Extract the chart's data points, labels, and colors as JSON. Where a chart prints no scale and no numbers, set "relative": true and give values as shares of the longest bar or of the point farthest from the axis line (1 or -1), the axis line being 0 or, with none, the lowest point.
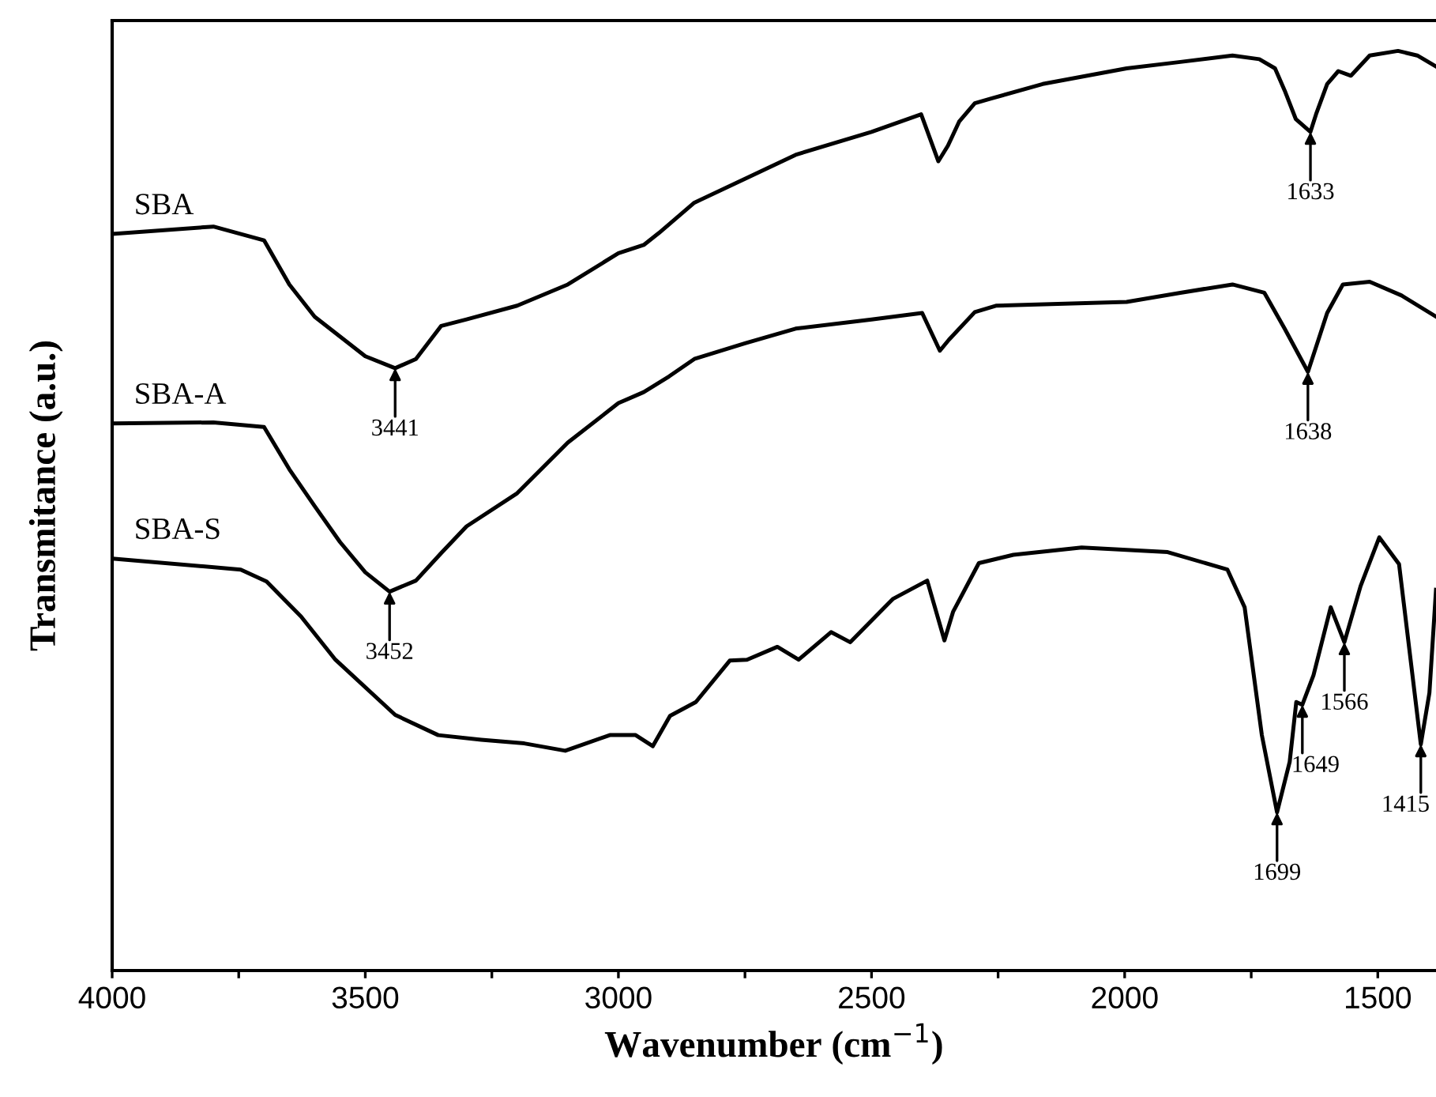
{
  "chart_data": {
    "type": "line",
    "relative": true,
    "xlabel": "Wavenumber (cm$^{−1}$)",
    "ylabel": "Transmitance (a.u.)",
    "xlim": [
      4000,
      1385
    ],
    "xticks": [
      4000,
      {
        "value": 3750,
        "label": null
      },
      3500,
      {
        "value": 3250,
        "label": null
      },
      3000,
      {
        "value": 2750,
        "label": null
      },
      2500,
      {
        "value": 2250,
        "label": null
      },
      2000,
      {
        "value": 1750,
        "label": null
      },
      1500
    ],
    "grid": false,
    "legend": false,
    "marker": "none",
    "line_style": "solid",
    "series": [
      {
        "name": "SBA",
        "color": "#000000",
        "x": [
          4000,
          3800,
          3700,
          3650,
          3600,
          3500,
          3441,
          3400,
          3350,
          3300,
          3200,
          3100,
          3000,
          2950,
          2920,
          2850,
          2750,
          2650,
          2500,
          2402,
          2368,
          2349,
          2327,
          2296,
          2265,
          2162,
          1996,
          1890,
          1787,
          1734,
          1703,
          1684,
          1662,
          1633,
          1622,
          1600,
          1578,
          1553,
          1516,
          1460,
          1422,
          1385
        ],
        "values": [
          0.801,
          0.809,
          0.794,
          0.746,
          0.711,
          0.668,
          0.655,
          0.665,
          0.701,
          0.708,
          0.723,
          0.746,
          0.78,
          0.789,
          0.802,
          0.835,
          0.861,
          0.887,
          0.912,
          0.931,
          0.88,
          0.897,
          0.923,
          0.943,
          0.948,
          0.964,
          0.981,
          0.988,
          0.995,
          0.991,
          0.981,
          0.957,
          0.926,
          0.912,
          0.931,
          0.964,
          0.978,
          0.973,
          0.995,
          1.0,
          0.995,
          0.983
        ]
      },
      {
        "name": "SBA-A",
        "color": "#000000",
        "x": [
          4000,
          3800,
          3700,
          3650,
          3600,
          3550,
          3500,
          3452,
          3400,
          3350,
          3300,
          3200,
          3100,
          3000,
          2950,
          2900,
          2850,
          2750,
          2650,
          2500,
          2400,
          2365,
          2347,
          2296,
          2253,
          1996,
          1890,
          1787,
          1724,
          1684,
          1638,
          1600,
          1569,
          1516,
          1453,
          1385
        ],
        "values": [
          0.595,
          0.596,
          0.591,
          0.545,
          0.505,
          0.466,
          0.433,
          0.412,
          0.424,
          0.454,
          0.483,
          0.519,
          0.574,
          0.617,
          0.629,
          0.646,
          0.665,
          0.682,
          0.698,
          0.708,
          0.715,
          0.674,
          0.686,
          0.716,
          0.723,
          0.727,
          0.737,
          0.746,
          0.737,
          0.698,
          0.651,
          0.715,
          0.746,
          0.749,
          0.734,
          0.711
        ]
      },
      {
        "name": "SBA-S",
        "color": "#000000",
        "x": [
          4000,
          3746,
          3695,
          3627,
          3559,
          3441,
          3356,
          3271,
          3186,
          3105,
          3017,
          2966,
          2932,
          2898,
          2847,
          2780,
          2746,
          2686,
          2644,
          2580,
          2542,
          2458,
          2390,
          2356,
          2339,
          2288,
          2220,
          2085,
          1915,
          1797,
          1763,
          1729,
          1699,
          1674,
          1661,
          1649,
          1627,
          1593,
          1566,
          1534,
          1497,
          1458,
          1415,
          1398,
          1385
        ],
        "values": [
          0.448,
          0.436,
          0.423,
          0.385,
          0.338,
          0.278,
          0.256,
          0.251,
          0.247,
          0.239,
          0.256,
          0.256,
          0.244,
          0.277,
          0.292,
          0.337,
          0.338,
          0.352,
          0.338,
          0.368,
          0.357,
          0.404,
          0.424,
          0.359,
          0.39,
          0.443,
          0.452,
          0.46,
          0.455,
          0.436,
          0.395,
          0.256,
          0.172,
          0.227,
          0.292,
          0.289,
          0.321,
          0.395,
          0.357,
          0.418,
          0.471,
          0.442,
          0.246,
          0.302,
          0.414
        ]
      }
    ],
    "annotations": [
      {
        "text": "3441",
        "x": 3441,
        "y": 0.655
      },
      {
        "text": "1633",
        "x": 1633,
        "y": 0.912
      },
      {
        "text": "3452",
        "x": 3452,
        "y": 0.412
      },
      {
        "text": "1638",
        "x": 1638,
        "y": 0.651
      },
      {
        "text": "1699",
        "x": 1699,
        "y": 0.172
      },
      {
        "text": "1649",
        "x": 1649,
        "y": 0.289
      },
      {
        "text": "1566",
        "x": 1566,
        "y": 0.357
      },
      {
        "text": "1415",
        "x": 1415,
        "y": 0.246
      }
    ]
  }
}
